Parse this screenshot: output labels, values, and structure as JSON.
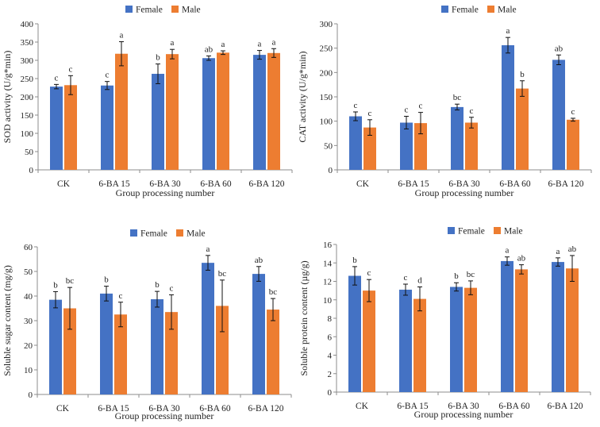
{
  "colors": {
    "female": "#4472c4",
    "male": "#ed7d31",
    "axis": "#8c8c8c",
    "text": "#222222"
  },
  "chart_data": [
    {
      "type": "bar",
      "title": "",
      "xlabel": "Group processing number",
      "ylabel": "SOD activity (U/g*min)",
      "ylim": [
        0,
        400
      ],
      "yticks": [
        0,
        50,
        100,
        150,
        200,
        250,
        300,
        350,
        400
      ],
      "categories": [
        "CK",
        "6-BA 15",
        "6-BA 30",
        "6-BA 60",
        "6-BA 120"
      ],
      "legend": {
        "position": "top-center",
        "entries": [
          "Female",
          "Male"
        ]
      },
      "series": [
        {
          "name": "Female",
          "values": [
            228,
            231,
            263,
            306,
            315
          ],
          "errors": [
            6,
            11,
            27,
            6,
            12
          ],
          "labels": [
            "c",
            "c",
            "b",
            "ab",
            "a"
          ]
        },
        {
          "name": "Male",
          "values": [
            232,
            318,
            317,
            321,
            320
          ],
          "errors": [
            26,
            33,
            13,
            5,
            12
          ],
          "labels": [
            "c",
            "a",
            "a",
            "a",
            "a"
          ]
        }
      ]
    },
    {
      "type": "bar",
      "title": "",
      "xlabel": "Group processing number",
      "ylabel": "CAT activity (U/g*min)",
      "ylim": [
        0,
        300
      ],
      "yticks": [
        0,
        50,
        100,
        150,
        200,
        250,
        300
      ],
      "categories": [
        "CK",
        "6-BA 15",
        "6-BA 30",
        "6-BA 60",
        "6-BA 120"
      ],
      "legend": {
        "position": "top-center",
        "entries": [
          "Female",
          "Male"
        ]
      },
      "series": [
        {
          "name": "Female",
          "values": [
            110,
            97,
            129,
            256,
            226
          ],
          "errors": [
            9,
            13,
            6,
            16,
            10
          ],
          "labels": [
            "c",
            "c",
            "bc",
            "a",
            "ab"
          ]
        },
        {
          "name": "Male",
          "values": [
            87,
            96,
            97,
            167,
            103
          ],
          "errors": [
            16,
            22,
            11,
            16,
            3
          ],
          "labels": [
            "c",
            "c",
            "c",
            "b",
            "c"
          ]
        }
      ]
    },
    {
      "type": "bar",
      "title": "",
      "xlabel": "Group processing number",
      "ylabel": "Soluble sugar content (mg/g)",
      "ylim": [
        0,
        60
      ],
      "yticks": [
        0,
        10,
        20,
        30,
        40,
        50,
        60
      ],
      "categories": [
        "CK",
        "6-BA 15",
        "6-BA 30",
        "6-BA 60",
        "6-BA 120"
      ],
      "legend": {
        "position": "top-center",
        "entries": [
          "Female",
          "Male"
        ]
      },
      "series": [
        {
          "name": "Female",
          "values": [
            38.5,
            41,
            38.7,
            53.5,
            49
          ],
          "errors": [
            3.3,
            3.0,
            3.2,
            3.0,
            3.0
          ],
          "labels": [
            "b",
            "b",
            "b",
            "a",
            "ab"
          ]
        },
        {
          "name": "Male",
          "values": [
            35,
            32.5,
            33.5,
            36,
            34.5
          ],
          "errors": [
            8.5,
            5.0,
            7.0,
            10.5,
            4.5
          ],
          "labels": [
            "bc",
            "c",
            "c",
            "bc",
            "bc"
          ]
        }
      ]
    },
    {
      "type": "bar",
      "title": "",
      "xlabel": "Group processing number",
      "ylabel": "Soluble protein content (µg/g)",
      "ylim": [
        0,
        16
      ],
      "yticks": [
        0,
        2,
        4,
        6,
        8,
        10,
        12,
        14,
        16
      ],
      "categories": [
        "CK",
        "6-BA 15",
        "6-BA 30",
        "6-BA 60",
        "6-BA 120"
      ],
      "legend": {
        "position": "top-center",
        "entries": [
          "Female",
          "Male"
        ]
      },
      "series": [
        {
          "name": "Female",
          "values": [
            12.6,
            11.1,
            11.4,
            14.2,
            14.1
          ],
          "errors": [
            1.0,
            0.6,
            0.45,
            0.45,
            0.45
          ],
          "labels": [
            "b",
            "c",
            "b",
            "a",
            "a"
          ]
        },
        {
          "name": "Male",
          "values": [
            11.0,
            10.1,
            11.3,
            13.3,
            13.4
          ],
          "errors": [
            1.2,
            1.3,
            0.75,
            0.5,
            1.4
          ],
          "labels": [
            "c",
            "d",
            "bc",
            "ab",
            "ab"
          ]
        }
      ]
    }
  ]
}
